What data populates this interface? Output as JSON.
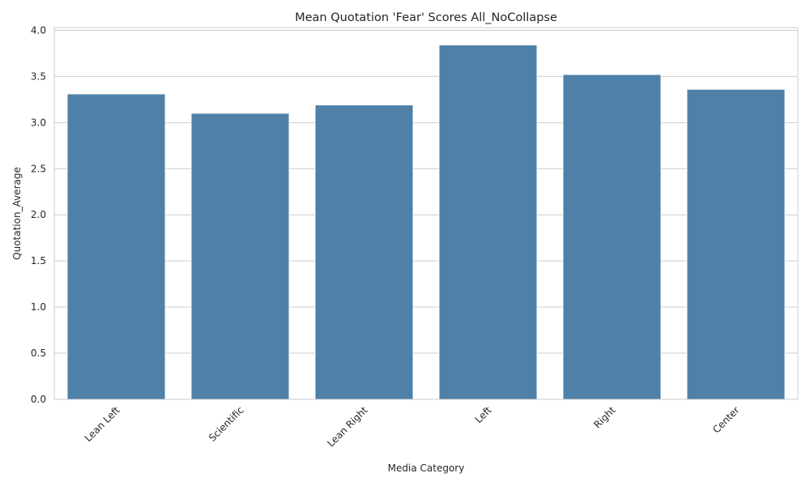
{
  "chart_data": {
    "type": "bar",
    "title": "Mean Quotation 'Fear' Scores All_NoCollapse",
    "xlabel": "Media Category",
    "ylabel": "Quotation_Average",
    "categories": [
      "Lean Left",
      "Scientific",
      "Lean Right",
      "Left",
      "Right",
      "Center"
    ],
    "values": [
      3.31,
      3.1,
      3.19,
      3.84,
      3.52,
      3.36
    ],
    "ylim": [
      0,
      4.03
    ],
    "yticks": [
      "0.0",
      "0.5",
      "1.0",
      "1.5",
      "2.0",
      "2.5",
      "3.0",
      "3.5",
      "4.0"
    ],
    "grid": true,
    "bar_color": "#4f81a8"
  }
}
